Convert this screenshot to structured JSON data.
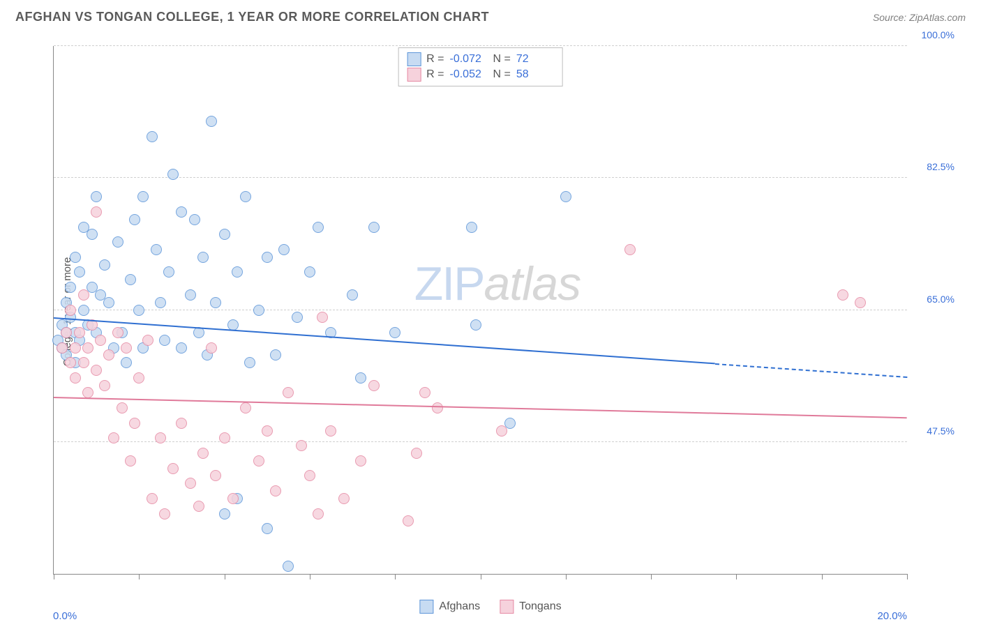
{
  "title": "AFGHAN VS TONGAN COLLEGE, 1 YEAR OR MORE CORRELATION CHART",
  "source": "Source: ZipAtlas.com",
  "y_axis_label": "College, 1 year or more",
  "watermark_a": "ZIP",
  "watermark_b": "atlas",
  "chart": {
    "type": "scatter",
    "x_min_label": "0.0%",
    "x_max_label": "20.0%",
    "x_range": [
      0,
      20
    ],
    "x_ticks": [
      0,
      2,
      4,
      6,
      8,
      10,
      12,
      14,
      16,
      18,
      20
    ],
    "y_range": [
      30,
      100
    ],
    "y_gridlines": [
      47.5,
      65.0,
      82.5,
      100.0
    ],
    "y_tick_labels": [
      "47.5%",
      "65.0%",
      "82.5%",
      "100.0%"
    ],
    "dot_radius": 8,
    "dot_stroke_width": 1.5,
    "series": [
      {
        "name": "Afghans",
        "fill": "#c7dbf2",
        "stroke": "#5e96d9",
        "r_value": "-0.072",
        "n_value": "72",
        "trend": {
          "color": "#2f6fd1",
          "y_start": 64.0,
          "y_end_x": 20,
          "y_end": 56.2,
          "solid_until_x": 15.5
        },
        "points": [
          [
            0.1,
            61
          ],
          [
            0.2,
            63
          ],
          [
            0.2,
            60
          ],
          [
            0.3,
            62
          ],
          [
            0.3,
            66
          ],
          [
            0.4,
            64
          ],
          [
            0.4,
            68
          ],
          [
            0.5,
            62
          ],
          [
            0.5,
            72
          ],
          [
            0.6,
            61
          ],
          [
            0.6,
            70
          ],
          [
            0.7,
            65
          ],
          [
            0.7,
            76
          ],
          [
            0.8,
            63
          ],
          [
            0.9,
            68
          ],
          [
            0.9,
            75
          ],
          [
            1.0,
            62
          ],
          [
            1.0,
            80
          ],
          [
            1.1,
            67
          ],
          [
            1.2,
            71
          ],
          [
            1.3,
            66
          ],
          [
            1.4,
            60
          ],
          [
            1.5,
            74
          ],
          [
            1.6,
            62
          ],
          [
            1.7,
            58
          ],
          [
            1.8,
            69
          ],
          [
            1.9,
            77
          ],
          [
            2.0,
            65
          ],
          [
            2.1,
            80
          ],
          [
            2.1,
            60
          ],
          [
            2.3,
            88
          ],
          [
            2.4,
            73
          ],
          [
            2.5,
            66
          ],
          [
            2.6,
            61
          ],
          [
            2.7,
            70
          ],
          [
            2.8,
            83
          ],
          [
            3.0,
            78
          ],
          [
            3.0,
            60
          ],
          [
            3.2,
            67
          ],
          [
            3.3,
            77
          ],
          [
            3.4,
            62
          ],
          [
            3.5,
            72
          ],
          [
            3.6,
            59
          ],
          [
            3.7,
            90
          ],
          [
            3.8,
            66
          ],
          [
            4.0,
            75
          ],
          [
            4.2,
            63
          ],
          [
            4.3,
            70
          ],
          [
            4.5,
            80
          ],
          [
            4.6,
            58
          ],
          [
            4.8,
            65
          ],
          [
            5.0,
            72
          ],
          [
            5.0,
            36
          ],
          [
            5.2,
            59
          ],
          [
            5.4,
            73
          ],
          [
            5.5,
            31
          ],
          [
            5.7,
            64
          ],
          [
            6.0,
            70
          ],
          [
            6.2,
            76
          ],
          [
            6.5,
            62
          ],
          [
            7.0,
            67
          ],
          [
            7.2,
            56
          ],
          [
            7.5,
            76
          ],
          [
            8.0,
            62
          ],
          [
            9.8,
            76
          ],
          [
            9.9,
            63
          ],
          [
            10.7,
            50
          ],
          [
            12.0,
            80
          ],
          [
            0.3,
            59
          ],
          [
            0.5,
            58
          ],
          [
            4.0,
            38
          ],
          [
            4.3,
            40
          ]
        ]
      },
      {
        "name": "Tongans",
        "fill": "#f6d2dc",
        "stroke": "#e68aa4",
        "r_value": "-0.052",
        "n_value": "58",
        "trend": {
          "color": "#e07a9a",
          "y_start": 53.5,
          "y_end_x": 20,
          "y_end": 50.8,
          "solid_until_x": 20
        },
        "points": [
          [
            0.2,
            60
          ],
          [
            0.3,
            62
          ],
          [
            0.4,
            58
          ],
          [
            0.4,
            65
          ],
          [
            0.5,
            60
          ],
          [
            0.5,
            56
          ],
          [
            0.6,
            62
          ],
          [
            0.7,
            58
          ],
          [
            0.7,
            67
          ],
          [
            0.8,
            60
          ],
          [
            0.8,
            54
          ],
          [
            0.9,
            63
          ],
          [
            1.0,
            57
          ],
          [
            1.0,
            78
          ],
          [
            1.1,
            61
          ],
          [
            1.2,
            55
          ],
          [
            1.3,
            59
          ],
          [
            1.4,
            48
          ],
          [
            1.5,
            62
          ],
          [
            1.6,
            52
          ],
          [
            1.7,
            60
          ],
          [
            1.8,
            45
          ],
          [
            1.9,
            50
          ],
          [
            2.0,
            56
          ],
          [
            2.2,
            61
          ],
          [
            2.3,
            40
          ],
          [
            2.5,
            48
          ],
          [
            2.6,
            38
          ],
          [
            2.8,
            44
          ],
          [
            3.0,
            50
          ],
          [
            3.2,
            42
          ],
          [
            3.4,
            39
          ],
          [
            3.5,
            46
          ],
          [
            3.7,
            60
          ],
          [
            3.8,
            43
          ],
          [
            4.0,
            48
          ],
          [
            4.2,
            40
          ],
          [
            4.5,
            52
          ],
          [
            4.8,
            45
          ],
          [
            5.0,
            49
          ],
          [
            5.2,
            41
          ],
          [
            5.5,
            54
          ],
          [
            5.8,
            47
          ],
          [
            6.0,
            43
          ],
          [
            6.2,
            38
          ],
          [
            6.3,
            64
          ],
          [
            6.5,
            49
          ],
          [
            6.8,
            40
          ],
          [
            7.2,
            45
          ],
          [
            7.5,
            55
          ],
          [
            8.3,
            37
          ],
          [
            8.5,
            46
          ],
          [
            8.7,
            54
          ],
          [
            9.0,
            52
          ],
          [
            10.5,
            49
          ],
          [
            13.5,
            73
          ],
          [
            18.5,
            67
          ],
          [
            18.9,
            66
          ]
        ]
      }
    ]
  },
  "legend_bottom": [
    {
      "label": "Afghans",
      "fill": "#c7dbf2",
      "stroke": "#5e96d9"
    },
    {
      "label": "Tongans",
      "fill": "#f6d2dc",
      "stroke": "#e68aa4"
    }
  ]
}
